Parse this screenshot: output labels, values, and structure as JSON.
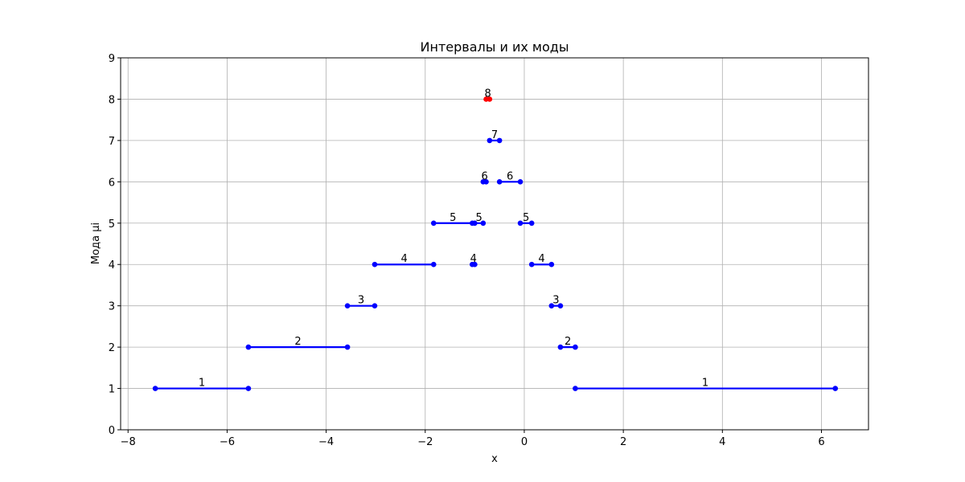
{
  "chart_data": {
    "type": "line",
    "title": "Интервалы и их моды",
    "xlabel": "x",
    "ylabel": "Мода μi",
    "xlim": [
      -8.15,
      6.95
    ],
    "ylim": [
      0,
      9
    ],
    "xticks": [
      -8,
      -6,
      -4,
      -2,
      0,
      2,
      4,
      6
    ],
    "yticks": [
      0,
      1,
      2,
      3,
      4,
      5,
      6,
      7,
      8,
      9
    ],
    "xtick_labels": [
      "−8",
      "−6",
      "−4",
      "−2",
      "0",
      "2",
      "4",
      "6"
    ],
    "ytick_labels": [
      "0",
      "1",
      "2",
      "3",
      "4",
      "5",
      "6",
      "7",
      "8",
      "9"
    ],
    "grid": true,
    "colors": {
      "interval": "#0000ff",
      "peak": "#ff0000",
      "grid": "#b0b0b0"
    },
    "intervals": [
      {
        "x0": -7.45,
        "x1": -5.57,
        "mode": 1,
        "label": "1",
        "color": "#0000ff"
      },
      {
        "x0": 1.03,
        "x1": 6.28,
        "mode": 1,
        "label": "1",
        "color": "#0000ff"
      },
      {
        "x0": -5.57,
        "x1": -3.57,
        "mode": 2,
        "label": "2",
        "color": "#0000ff"
      },
      {
        "x0": 0.73,
        "x1": 1.03,
        "mode": 2,
        "label": "2",
        "color": "#0000ff"
      },
      {
        "x0": -3.57,
        "x1": -3.02,
        "mode": 3,
        "label": "3",
        "color": "#0000ff"
      },
      {
        "x0": 0.55,
        "x1": 0.73,
        "mode": 3,
        "label": "3",
        "color": "#0000ff"
      },
      {
        "x0": -3.02,
        "x1": -1.83,
        "mode": 4,
        "label": "4",
        "color": "#0000ff"
      },
      {
        "x0": -1.05,
        "x1": -1.0,
        "mode": 4,
        "label": "4",
        "color": "#0000ff"
      },
      {
        "x0": 0.15,
        "x1": 0.55,
        "mode": 4,
        "label": "4",
        "color": "#0000ff"
      },
      {
        "x0": -1.83,
        "x1": -1.05,
        "mode": 5,
        "label": "5",
        "color": "#0000ff"
      },
      {
        "x0": -1.0,
        "x1": -0.83,
        "mode": 5,
        "label": "5",
        "color": "#0000ff"
      },
      {
        "x0": -0.08,
        "x1": 0.15,
        "mode": 5,
        "label": "5",
        "color": "#0000ff"
      },
      {
        "x0": -0.83,
        "x1": -0.77,
        "mode": 6,
        "label": "6",
        "color": "#0000ff"
      },
      {
        "x0": -0.5,
        "x1": -0.08,
        "mode": 6,
        "label": "6",
        "color": "#0000ff"
      },
      {
        "x0": -0.7,
        "x1": -0.5,
        "mode": 7,
        "label": "7",
        "color": "#0000ff"
      },
      {
        "x0": -0.77,
        "x1": -0.7,
        "mode": 8,
        "label": "8",
        "color": "#ff0000"
      }
    ]
  }
}
